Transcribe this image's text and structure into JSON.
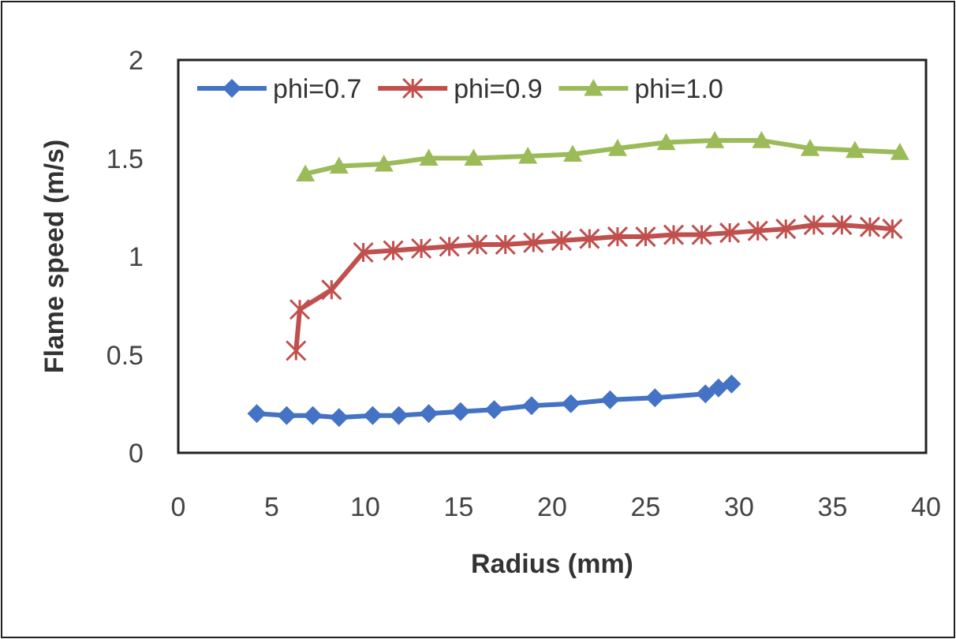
{
  "chart_data": {
    "type": "line",
    "xlabel": "Radius (mm)",
    "ylabel": "Flame speed (m/s)",
    "xlim": [
      0,
      40
    ],
    "xticks": [
      0,
      5,
      10,
      15,
      20,
      25,
      30,
      35,
      40
    ],
    "ylim": [
      0,
      2
    ],
    "yticks": [
      0,
      0.5,
      1,
      1.5,
      2
    ],
    "grid": false,
    "legend": "top",
    "series": [
      {
        "name": "phi=0.7",
        "color": "#4472c4",
        "marker": "diamond",
        "x": [
          4.2,
          5.8,
          7.2,
          8.6,
          10.4,
          11.8,
          13.4,
          15.1,
          16.9,
          18.9,
          21.0,
          23.1,
          25.5,
          28.2,
          28.9,
          29.6
        ],
        "values": [
          0.2,
          0.19,
          0.19,
          0.18,
          0.19,
          0.19,
          0.2,
          0.21,
          0.22,
          0.24,
          0.25,
          0.27,
          0.28,
          0.3,
          0.33,
          0.35
        ]
      },
      {
        "name": "phi=0.9",
        "color": "#c0504d",
        "marker": "cross",
        "x": [
          6.3,
          6.5,
          8.2,
          9.9,
          11.5,
          13,
          14.5,
          16,
          17.5,
          19,
          20.5,
          22,
          23.5,
          25,
          26.5,
          28,
          29.5,
          31,
          32.5,
          34,
          35.5,
          37,
          38.2
        ],
        "values": [
          0.52,
          0.73,
          0.83,
          1.02,
          1.03,
          1.04,
          1.05,
          1.06,
          1.06,
          1.07,
          1.08,
          1.09,
          1.1,
          1.1,
          1.11,
          1.11,
          1.12,
          1.13,
          1.14,
          1.16,
          1.16,
          1.15,
          1.14
        ]
      },
      {
        "name": "phi=1.0",
        "color": "#9bbb59",
        "marker": "triangle",
        "x": [
          6.8,
          8.6,
          11,
          13.4,
          15.8,
          18.7,
          21.1,
          23.5,
          26.1,
          28.7,
          31.2,
          33.8,
          36.2,
          38.6
        ],
        "values": [
          1.42,
          1.46,
          1.47,
          1.5,
          1.5,
          1.51,
          1.52,
          1.55,
          1.58,
          1.59,
          1.59,
          1.55,
          1.54,
          1.53
        ]
      }
    ]
  }
}
